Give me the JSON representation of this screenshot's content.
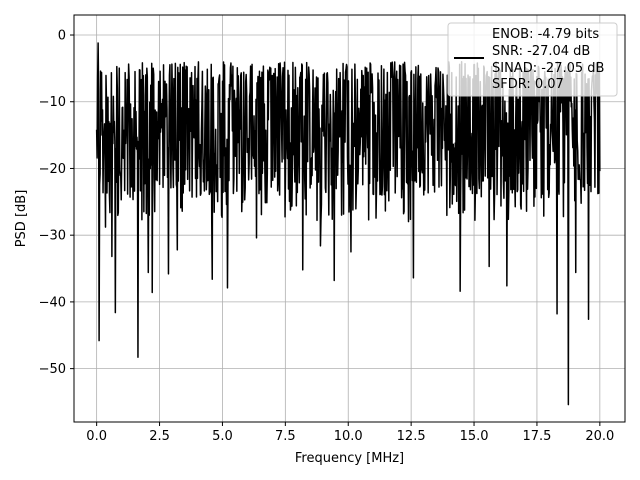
{
  "chart_data": {
    "type": "line",
    "xlabel": "Frequency [MHz]",
    "ylabel": "PSD [dB]",
    "xlim": [
      -0.9,
      21.0
    ],
    "ylim": [
      -58,
      3
    ],
    "x_ticks": [
      0.0,
      2.5,
      5.0,
      7.5,
      10.0,
      12.5,
      15.0,
      17.5,
      20.0
    ],
    "x_tick_labels": [
      "0.0",
      "2.5",
      "5.0",
      "7.5",
      "10.0",
      "12.5",
      "15.0",
      "17.5",
      "20.0"
    ],
    "y_ticks": [
      0,
      -10,
      -20,
      -30,
      -40,
      -50
    ],
    "y_tick_labels": [
      "0",
      "−10",
      "−20",
      "−30",
      "−40",
      "−50"
    ],
    "grid": true,
    "legend_position": "top-right",
    "series": [
      {
        "color": "#000000",
        "x_range": [
          0.0,
          20.0
        ],
        "points": 1024,
        "typical_range": [
          -24,
          -4
        ],
        "max": -1.2,
        "min": -55.4,
        "notable_peaks": [
          [
            0.05,
            -1.2
          ],
          [
            0.1,
            -1.5
          ]
        ],
        "notable_dips": [
          [
            0.1,
            -45.8
          ],
          [
            0.35,
            -28.8
          ],
          [
            0.6,
            -33.2
          ],
          [
            0.75,
            -41.6
          ],
          [
            1.65,
            -48.3
          ],
          [
            2.05,
            -35.6
          ],
          [
            2.2,
            -38.6
          ],
          [
            2.85,
            -35.8
          ],
          [
            3.2,
            -32.2
          ],
          [
            4.6,
            -36.6
          ],
          [
            5.2,
            -37.9
          ],
          [
            6.35,
            -30.4
          ],
          [
            8.2,
            -35.2
          ],
          [
            8.9,
            -31.6
          ],
          [
            9.45,
            -36.8
          ],
          [
            10.1,
            -32.5
          ],
          [
            12.6,
            -36.4
          ],
          [
            14.45,
            -38.4
          ],
          [
            15.6,
            -34.7
          ],
          [
            16.3,
            -37.6
          ],
          [
            18.3,
            -41.8
          ],
          [
            18.75,
            -55.4
          ],
          [
            19.05,
            -35.6
          ],
          [
            19.55,
            -42.6
          ]
        ]
      }
    ],
    "legend_text": [
      "ENOB: -4.79 bits",
      "SNR: -27.04 dB",
      "SINAD: -27.05 dB",
      "SFDR: 0.07"
    ]
  }
}
